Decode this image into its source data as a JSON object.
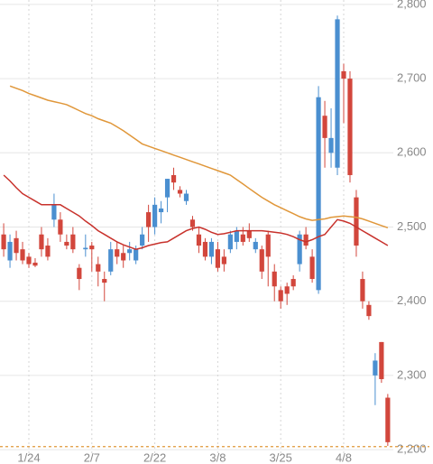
{
  "chart_data": {
    "type": "candlestick",
    "categories": [
      null,
      null,
      null,
      null,
      "1/24",
      null,
      null,
      null,
      null,
      null,
      null,
      null,
      null,
      null,
      "2/7",
      null,
      null,
      null,
      null,
      null,
      null,
      null,
      null,
      null,
      "2/22",
      null,
      null,
      null,
      null,
      null,
      null,
      null,
      null,
      null,
      "3/8",
      null,
      null,
      null,
      null,
      null,
      null,
      null,
      null,
      null,
      "3/25",
      null,
      null,
      null,
      null,
      null,
      null,
      null,
      null,
      null,
      "4/8",
      null,
      null,
      null,
      null,
      null,
      null,
      null
    ],
    "open": [
      2490,
      2455,
      2485,
      2470,
      2460,
      2452,
      2490,
      2475,
      2510,
      2510,
      2480,
      2490,
      2445,
      2470,
      2475,
      2450,
      2430,
      2440,
      2470,
      2465,
      2465,
      2455,
      2475,
      2520,
      2500,
      2520,
      2540,
      2570,
      2550,
      2535,
      2510,
      2490,
      2480,
      2460,
      2470,
      2460,
      2470,
      2480,
      2490,
      2495,
      2470,
      2470,
      2490,
      2440,
      2415,
      2420,
      2430,
      2450,
      2490,
      2460,
      2415,
      2650,
      2600,
      2580,
      2710,
      2700,
      2540,
      2430,
      2395,
      2300,
      2345,
      2270
    ],
    "high": [
      2505,
      2490,
      2495,
      2480,
      2465,
      2458,
      2500,
      2485,
      2545,
      2520,
      2490,
      2500,
      2450,
      2490,
      2480,
      2460,
      2440,
      2480,
      2480,
      2475,
      2480,
      2475,
      2500,
      2530,
      2540,
      2535,
      2565,
      2580,
      2555,
      2550,
      2515,
      2500,
      2485,
      2485,
      2480,
      2470,
      2495,
      2500,
      2500,
      2505,
      2485,
      2475,
      2495,
      2450,
      2420,
      2425,
      2435,
      2495,
      2500,
      2470,
      2690,
      2670,
      2660,
      2785,
      2720,
      2710,
      2550,
      2440,
      2400,
      2330,
      2345,
      2275
    ],
    "low": [
      2460,
      2445,
      2455,
      2450,
      2445,
      2446,
      2460,
      2455,
      2500,
      2480,
      2470,
      2465,
      2415,
      2460,
      2440,
      2420,
      2400,
      2435,
      2450,
      2445,
      2455,
      2450,
      2470,
      2480,
      2490,
      2505,
      2520,
      2550,
      2540,
      2530,
      2495,
      2465,
      2455,
      2450,
      2440,
      2440,
      2465,
      2470,
      2475,
      2480,
      2465,
      2430,
      2420,
      2400,
      2390,
      2395,
      2415,
      2440,
      2470,
      2425,
      2410,
      2580,
      2580,
      2570,
      2640,
      2560,
      2460,
      2390,
      2375,
      2260,
      2290,
      2205
    ],
    "close": [
      2470,
      2480,
      2465,
      2455,
      2450,
      2448,
      2470,
      2460,
      2530,
      2490,
      2475,
      2470,
      2430,
      2472,
      2470,
      2440,
      2425,
      2470,
      2460,
      2455,
      2470,
      2470,
      2490,
      2500,
      2530,
      2525,
      2565,
      2560,
      2545,
      2545,
      2500,
      2475,
      2460,
      2480,
      2445,
      2450,
      2490,
      2495,
      2480,
      2485,
      2480,
      2440,
      2460,
      2420,
      2400,
      2410,
      2420,
      2490,
      2475,
      2430,
      2675,
      2620,
      2620,
      2780,
      2700,
      2570,
      2475,
      2400,
      2380,
      2320,
      2295,
      2210
    ],
    "up_color": "#4a8fd0",
    "down_color": "#d2463c",
    "lines": [
      {
        "color": "#e0973a",
        "values": [
          null,
          2690,
          2687,
          2684,
          2680,
          2677,
          2674,
          2671,
          2669,
          2667,
          2665,
          2661,
          2657,
          2653,
          2650,
          2646,
          2643,
          2640,
          2635,
          2630,
          2624,
          2618,
          2612,
          2609,
          2606,
          2603,
          2600,
          2597,
          2594,
          2591,
          2588,
          2585,
          2582,
          2579,
          2576,
          2573,
          2570,
          2564,
          2558,
          2552,
          2546,
          2540,
          2535,
          2530,
          2526,
          2522,
          2518,
          2514,
          2511,
          2509,
          2510,
          2511,
          2513,
          2514,
          2515,
          2514,
          2513,
          2511,
          2508,
          2505,
          2502,
          2499
        ]
      },
      {
        "color": "#c8322c",
        "values": [
          2570,
          2562,
          2553,
          2545,
          2540,
          2535,
          2530,
          2530,
          2530,
          2530,
          2525,
          2520,
          2515,
          2508,
          2502,
          2495,
          2490,
          2485,
          2480,
          2476,
          2473,
          2470,
          2472,
          2475,
          2477,
          2479,
          2480,
          2485,
          2490,
          2495,
          2498,
          2500,
          2497,
          2493,
          2490,
          2491,
          2493,
          2495,
          2495,
          2495,
          2495,
          2495,
          2494,
          2493,
          2492,
          2490,
          2487,
          2483,
          2480,
          2483,
          2487,
          2490,
          2500,
          2510,
          2508,
          2505,
          2500,
          2495,
          2490,
          2485,
          2480,
          2475
        ]
      }
    ],
    "reference_line": 2204,
    "reference_color": "#e0973a",
    "ylim": [
      2194,
      2806
    ],
    "yticks": [
      {
        "value": 2200,
        "label": "2,200"
      },
      {
        "value": 2300,
        "label": "2,300"
      },
      {
        "value": 2400,
        "label": "2,400"
      },
      {
        "value": 2500,
        "label": "2,500"
      },
      {
        "value": 2600,
        "label": "2,600"
      },
      {
        "value": 2700,
        "label": "2,700"
      },
      {
        "value": 2800,
        "label": "2,800"
      }
    ],
    "grid": true
  }
}
